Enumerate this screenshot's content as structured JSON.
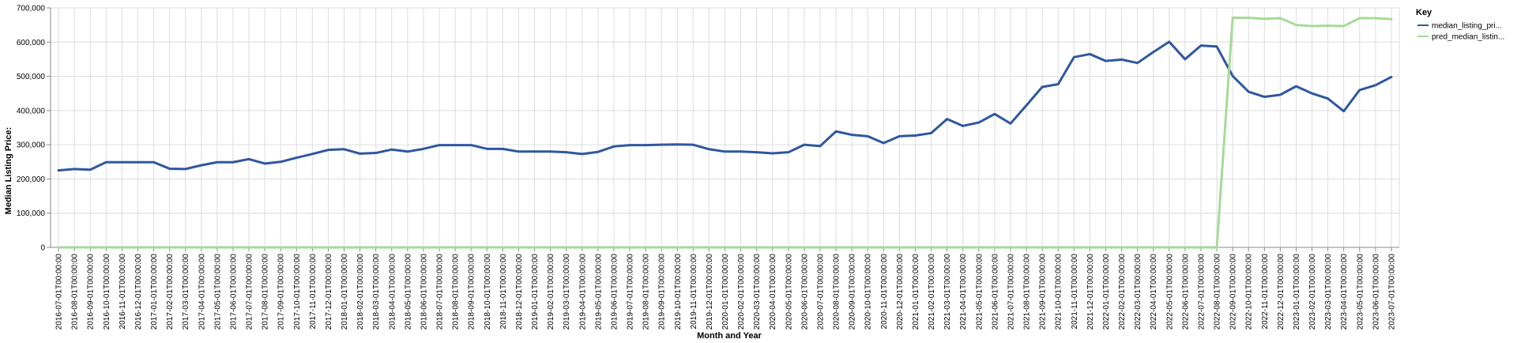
{
  "chart_data": {
    "type": "line",
    "xlabel": "Month and Year",
    "ylabel": "Median Listing Price:",
    "ylim": [
      0,
      700000
    ],
    "y_ticks": [
      "0",
      "100,000",
      "200,000",
      "300,000",
      "400,000",
      "500,000",
      "600,000",
      "700,000"
    ],
    "y_tick_values": [
      0,
      100000,
      200000,
      300000,
      400000,
      500000,
      600000,
      700000
    ],
    "grid": true,
    "legend": {
      "title": "Key",
      "position": "top-right"
    },
    "x": [
      "2016-07-01T00:00:00",
      "2016-08-01T00:00:00",
      "2016-09-01T00:00:00",
      "2016-10-01T00:00:00",
      "2016-11-01T00:00:00",
      "2016-12-01T00:00:00",
      "2017-01-01T00:00:00",
      "2017-02-01T00:00:00",
      "2017-03-01T00:00:00",
      "2017-04-01T00:00:00",
      "2017-05-01T00:00:00",
      "2017-06-01T00:00:00",
      "2017-07-01T00:00:00",
      "2017-08-01T00:00:00",
      "2017-09-01T00:00:00",
      "2017-10-01T00:00:00",
      "2017-11-01T00:00:00",
      "2017-12-01T00:00:00",
      "2018-01-01T00:00:00",
      "2018-02-01T00:00:00",
      "2018-03-01T00:00:00",
      "2018-04-01T00:00:00",
      "2018-05-01T00:00:00",
      "2018-06-01T00:00:00",
      "2018-07-01T00:00:00",
      "2018-08-01T00:00:00",
      "2018-09-01T00:00:00",
      "2018-10-01T00:00:00",
      "2018-11-01T00:00:00",
      "2018-12-01T00:00:00",
      "2019-01-01T00:00:00",
      "2019-02-01T00:00:00",
      "2019-03-01T00:00:00",
      "2019-04-01T00:00:00",
      "2019-05-01T00:00:00",
      "2019-06-01T00:00:00",
      "2019-07-01T00:00:00",
      "2019-08-01T00:00:00",
      "2019-09-01T00:00:00",
      "2019-10-01T00:00:00",
      "2019-11-01T00:00:00",
      "2019-12-01T00:00:00",
      "2020-01-01T00:00:00",
      "2020-02-01T00:00:00",
      "2020-03-01T00:00:00",
      "2020-04-01T00:00:00",
      "2020-05-01T00:00:00",
      "2020-06-01T00:00:00",
      "2020-07-01T00:00:00",
      "2020-08-01T00:00:00",
      "2020-09-01T00:00:00",
      "2020-10-01T00:00:00",
      "2020-11-01T00:00:00",
      "2020-12-01T00:00:00",
      "2021-01-01T00:00:00",
      "2021-02-01T00:00:00",
      "2021-03-01T00:00:00",
      "2021-04-01T00:00:00",
      "2021-05-01T00:00:00",
      "2021-06-01T00:00:00",
      "2021-07-01T00:00:00",
      "2021-08-01T00:00:00",
      "2021-09-01T00:00:00",
      "2021-10-01T00:00:00",
      "2021-11-01T00:00:00",
      "2021-12-01T00:00:00",
      "2022-01-01T00:00:00",
      "2022-02-01T00:00:00",
      "2022-03-01T00:00:00",
      "2022-04-01T00:00:00",
      "2022-05-01T00:00:00",
      "2022-06-01T00:00:00",
      "2022-07-01T00:00:00",
      "2022-08-01T00:00:00",
      "2022-09-01T00:00:00",
      "2022-10-01T00:00:00",
      "2022-11-01T00:00:00",
      "2022-12-01T00:00:00",
      "2023-01-01T00:00:00",
      "2023-02-01T00:00:00",
      "2023-03-01T00:00:00",
      "2023-04-01T00:00:00",
      "2023-05-01T00:00:00",
      "2023-06-01T00:00:00",
      "2023-07-01T00:00:00"
    ],
    "x_tick_labels": [
      "2016-07-01T00:00:00",
      "2016-08-01T00:00:00",
      "2016-09-01T00:00:00",
      "2016-10-01T00:00:00",
      "2016-11-01T00:00:00",
      "2016-12-01T00:00:00",
      "2017-01-01T00:00:00",
      "2017-02-01T00:00:00",
      "2017-03-01T00:00:00",
      "2017-04-01T00:00:00",
      "2017-05-01T00:00:00",
      "2017-06-01T00:00:00",
      "2017-07-01T00:00:00",
      "2017-08-01T00:00:00",
      "2017-09-01T00:00:00",
      "2017-10-01T00:00:00",
      "2017-11-01T00:00:00",
      "2017-12-01T00:00:00",
      "2018-01-01T00:00:00",
      "2018-02-01T00:00:00",
      "2018-03-01T00:00:00",
      "2018-04-01T00:00:00",
      "2018-05-01T00:00:00",
      "2018-06-01T00:00:00",
      "2018-07-01T00:00:00",
      "2018-08-01T00:00:00",
      "2018-09-01T00:00:00",
      "2018-10-01T00:00:00",
      "2018-11-01T00:00:00",
      "2018-12-01T00:00:00",
      "2019-01-01T00:00:00",
      "2019-02-01T00:00:00",
      "2019-03-01T00:00:00",
      "2019-04-01T00:00:00",
      "2019-05-01T00:00:00",
      "2019-06-01T00:00:00",
      "2019-07-01T00:00:00",
      "2019-08-01T00:00:00",
      "2019-09-01T00:00:00",
      "2019-10-01T00:00:00",
      "2019-11-01T00:00:00",
      "2019-12-01T00:00:00",
      "2020-01-01T00:00:00",
      "2020-02-01T00:00:00",
      "2020-03-01T00:00:00",
      "2020-04-01T00:00:00",
      "2020-05-01T00:00:00",
      "2020-06-01T00:00:00",
      "2020-07-01T00:00:00",
      "2020-08-01T00:00:00",
      "2020-09-01T00:00:00",
      "2020-10-01T00:00:00",
      "2020-11-01T00:00:00",
      "2020-12-01T00:00:00",
      "2021-01-01T00:00:00",
      "2021-02-01T00:00:00",
      "2021-03-01T00:00:00",
      "2021-04-01T00:00:00",
      "2021-05-01T00:00:00",
      "2021-06-01T00:00:00",
      "2021-07-01T00:00:00",
      "2021-08-01T00:00:00",
      "2021-09-01T00:00:00",
      "2021-10-01T00:00:00",
      "2021-11-01T00:00:00",
      "2021-12-01T00:00:00",
      "2022-01-01T00:00:00",
      "2022-02-01T00:00:00",
      "2022-03-01T00:00:00",
      "2022-04-01T00:00:00",
      "2022-05-01T00:00:00",
      "2022-06-01T00:00:00",
      "2022-07-01T00:00:00",
      "2022-08-01T00:00:00",
      "2022-09-01T00:00:00",
      "2022-10-01T00:00:00",
      "2022-11-01T00:00:00",
      "2022-12-01T00:00:00",
      "2023-01-01T00:00:00",
      "2023-02-01T00:00:00",
      "2023-03-01T00:00:00",
      "2023-04-01T00:00:00",
      "2023-05-01T00:00:00",
      "2023-06-01T00:00:00",
      "2023-07-01T00:00:00"
    ],
    "series": [
      {
        "name": "median_listing_pri...",
        "color": "#2f57a0",
        "values": [
          225000,
          229000,
          227000,
          249000,
          249000,
          249000,
          249000,
          230000,
          229000,
          240000,
          249000,
          249000,
          258000,
          245000,
          250000,
          262000,
          273000,
          285000,
          287000,
          274000,
          276000,
          286000,
          280000,
          288000,
          299000,
          299000,
          299000,
          288000,
          288000,
          280000,
          280000,
          280000,
          278000,
          273000,
          279000,
          295000,
          299000,
          299000,
          300000,
          301000,
          300000,
          287000,
          280000,
          280000,
          278000,
          275000,
          278000,
          300000,
          296000,
          339000,
          329000,
          325000,
          305000,
          325000,
          327000,
          334000,
          375000,
          355000,
          365000,
          390000,
          362000,
          415000,
          469000,
          477000,
          556000,
          565000,
          545000,
          549000,
          539000,
          571000,
          601000,
          550000,
          590000,
          587000,
          501000,
          455000,
          440000,
          446000,
          471000,
          450000,
          435000,
          398000,
          460000,
          474000,
          498000
        ]
      },
      {
        "name": "pred_median_listin...",
        "color": "#a6da98",
        "values": [
          0,
          0,
          0,
          0,
          0,
          0,
          0,
          0,
          0,
          0,
          0,
          0,
          0,
          0,
          0,
          0,
          0,
          0,
          0,
          0,
          0,
          0,
          0,
          0,
          0,
          0,
          0,
          0,
          0,
          0,
          0,
          0,
          0,
          0,
          0,
          0,
          0,
          0,
          0,
          0,
          0,
          0,
          0,
          0,
          0,
          0,
          0,
          0,
          0,
          0,
          0,
          0,
          0,
          0,
          0,
          0,
          0,
          0,
          0,
          0,
          0,
          0,
          0,
          0,
          0,
          0,
          0,
          0,
          0,
          0,
          0,
          0,
          0,
          0,
          671000,
          671000,
          668000,
          670000,
          650000,
          647000,
          648000,
          647000,
          670000,
          670000,
          667000
        ]
      }
    ]
  }
}
